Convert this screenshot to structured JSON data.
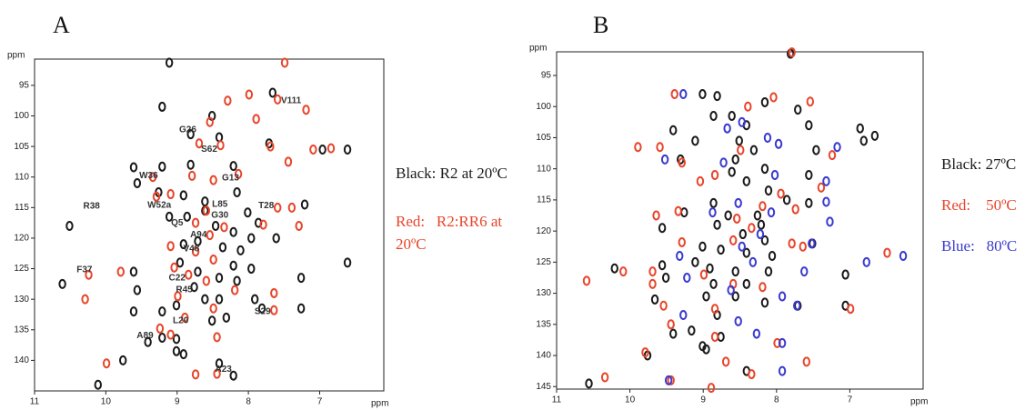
{
  "chart_data": [
    {
      "type": "scatter",
      "title": "A",
      "xlabel": "ppm",
      "ylabel": "ppm",
      "xlim": [
        11,
        6.1
      ],
      "ylim": [
        90.7,
        145
      ],
      "xticks": [
        11,
        10,
        9,
        8,
        7
      ],
      "yticks": [
        95,
        100,
        105,
        110,
        115,
        120,
        125,
        130,
        135,
        140
      ],
      "series": [
        {
          "name": "Black: R2 at 20ºC",
          "color": "#1a1a1a",
          "x": [
            9.1,
            7.65,
            9.2,
            8.5,
            8.8,
            8.4,
            7.7,
            8.8,
            9.2,
            8.2,
            9.6,
            9.55,
            9.25,
            8.9,
            8.6,
            8.15,
            7.2,
            8.6,
            8.0,
            7.85,
            8.45,
            8.85,
            9.1,
            8.2,
            7.95,
            7.6,
            8.7,
            8.9,
            8.35,
            8.1,
            8.95,
            8.2,
            7.95,
            9.6,
            8.7,
            8.4,
            8.15,
            7.25,
            9.55,
            8.75,
            8.6,
            8.4,
            9.0,
            9.2,
            9.6,
            7.9,
            7.8,
            7.25,
            8.3,
            8.5,
            9.0,
            9.2,
            9.4,
            9.0,
            8.9,
            9.75,
            8.4,
            8.2,
            10.1,
            6.6,
            6.6,
            6.95,
            10.6,
            10.5
          ],
          "values": [
            91.3,
            96.2,
            98.5,
            100,
            103,
            103.5,
            104.5,
            108,
            108.3,
            108.2,
            108.4,
            111,
            112.5,
            113,
            114,
            112.5,
            114.5,
            115.5,
            115.8,
            117.5,
            118,
            116.5,
            116.5,
            119,
            120,
            120,
            120.5,
            121,
            121.5,
            122,
            124,
            124.5,
            125,
            125.5,
            125.5,
            126.5,
            127,
            126.5,
            128.5,
            128,
            130,
            130,
            131,
            132,
            132,
            130,
            131.5,
            131.5,
            133,
            133.5,
            136.5,
            136.3,
            137,
            138.5,
            139,
            140,
            140.5,
            142.5,
            144,
            124,
            105.5,
            105.5,
            127.5,
            118
          ]
        },
        {
          "name": "Red:   R2:RR6 at 20ºC",
          "color": "#e8452a",
          "x": [
            7.5,
            8.0,
            7.6,
            8.3,
            8.55,
            7.2,
            7.9,
            8.4,
            8.7,
            7.7,
            7.1,
            6.85,
            7.45,
            8.8,
            9.35,
            8.5,
            8.15,
            9.1,
            9.3,
            8.6,
            7.6,
            8.75,
            8.35,
            7.8,
            8.55,
            9.1,
            8.75,
            8.5,
            9.05,
            8.85,
            8.6,
            8.2,
            7.65,
            9.0,
            8.5,
            7.65,
            8.9,
            9.25,
            9.1,
            8.45,
            10.0,
            8.75,
            8.45,
            9.8,
            10.25,
            10.3,
            7.4,
            7.3
          ],
          "values": [
            91.3,
            96.5,
            97.3,
            97.5,
            101,
            99,
            100.5,
            104.8,
            104.5,
            105,
            105.5,
            105.3,
            107.5,
            109.8,
            110,
            110.5,
            109.5,
            112.8,
            113.2,
            115.5,
            115,
            117.5,
            118.2,
            117.8,
            119.5,
            121.3,
            122.2,
            123.5,
            124.8,
            126,
            127,
            128.5,
            129,
            129.5,
            131.5,
            131.8,
            133,
            134.8,
            135.8,
            136.2,
            140.5,
            142.3,
            142.2,
            125.5,
            126,
            130,
            115,
            118
          ]
        }
      ],
      "annotations": [
        {
          "text": "V111",
          "x": 7.4,
          "y": 97.5
        },
        {
          "text": "G26",
          "x": 8.85,
          "y": 102.3
        },
        {
          "text": "S62",
          "x": 8.55,
          "y": 105.5
        },
        {
          "text": "W36",
          "x": 9.4,
          "y": 109.8
        },
        {
          "text": "G13",
          "x": 8.25,
          "y": 110.2
        },
        {
          "text": "W52a",
          "x": 9.25,
          "y": 114.6
        },
        {
          "text": "R38",
          "x": 10.2,
          "y": 114.8
        },
        {
          "text": "L85",
          "x": 8.4,
          "y": 114.5
        },
        {
          "text": "T28",
          "x": 7.75,
          "y": 114.7
        },
        {
          "text": "Q5",
          "x": 9.0,
          "y": 117.5
        },
        {
          "text": "G30",
          "x": 8.4,
          "y": 116.3
        },
        {
          "text": "A94",
          "x": 8.7,
          "y": 119.5
        },
        {
          "text": "V48",
          "x": 8.8,
          "y": 121.8
        },
        {
          "text": "F37",
          "x": 10.3,
          "y": 125.2
        },
        {
          "text": "C22",
          "x": 9.0,
          "y": 126.5
        },
        {
          "text": "R45",
          "x": 8.9,
          "y": 128.5
        },
        {
          "text": "S29",
          "x": 7.8,
          "y": 132
        },
        {
          "text": "L20",
          "x": 8.95,
          "y": 133.5
        },
        {
          "text": "A89",
          "x": 9.45,
          "y": 136
        },
        {
          "text": "A23",
          "x": 8.35,
          "y": 141.5
        }
      ]
    },
    {
      "type": "scatter",
      "title": "B",
      "xlabel": "ppm",
      "ylabel": "ppm",
      "xlim": [
        11,
        6.0
      ],
      "ylim": [
        91.2,
        145.4
      ],
      "xticks": [
        11,
        10,
        9,
        8,
        7
      ],
      "yticks": [
        95,
        100,
        105,
        110,
        115,
        120,
        125,
        130,
        135,
        140,
        145
      ],
      "series": [
        {
          "name": "Black: 27ºC",
          "color": "#1a1a1a",
          "x": [
            7.8,
            9.0,
            8.8,
            8.15,
            7.7,
            8.6,
            8.85,
            9.4,
            8.4,
            7.55,
            6.85,
            6.65,
            6.8,
            8.5,
            9.1,
            8.3,
            7.45,
            8.55,
            9.3,
            8.6,
            8.15,
            7.55,
            8.4,
            8.1,
            7.85,
            7.55,
            8.85,
            9.25,
            8.65,
            8.25,
            8.2,
            9.55,
            8.8,
            8.45,
            8.15,
            7.5,
            9.0,
            8.75,
            8.4,
            8.05,
            9.1,
            9.55,
            8.9,
            8.55,
            8.1,
            10.2,
            9.5,
            8.85,
            8.4,
            7.05,
            9.65,
            8.95,
            8.55,
            8.15,
            7.7,
            7.05,
            8.8,
            9.4,
            9.15,
            8.75,
            9.0,
            8.95,
            9.75,
            8.4,
            10.55
          ],
          "values": [
            91.5,
            98,
            98.3,
            99.3,
            100.5,
            101.5,
            101.5,
            103.8,
            103,
            103,
            103.5,
            104.7,
            105.5,
            105.5,
            105.5,
            107,
            107,
            108.5,
            108.5,
            110.5,
            110,
            111,
            112,
            113.5,
            115,
            115.5,
            115.5,
            117,
            117.5,
            117.5,
            119,
            119.5,
            119,
            120.5,
            121.5,
            122,
            122.5,
            123,
            123.5,
            124,
            125,
            125.5,
            126,
            126.5,
            126.5,
            126,
            127.5,
            128.5,
            128.5,
            127,
            131,
            130.5,
            130.5,
            131.5,
            132,
            132,
            133.5,
            136.5,
            136,
            137,
            138.5,
            139,
            140,
            142.5,
            144.5
          ]
        },
        {
          "name": "Red:    50ºC",
          "color": "#e8452a",
          "x": [
            7.8,
            9.4,
            8.05,
            7.55,
            8.4,
            9.9,
            9.6,
            9.3,
            8.5,
            7.25,
            8.85,
            9.05,
            7.4,
            7.95,
            8.2,
            7.75,
            9.65,
            9.35,
            8.55,
            8.35,
            9.3,
            8.6,
            7.8,
            7.65,
            6.5,
            10.1,
            9.7,
            9.0,
            8.6,
            8.2,
            10.6,
            9.7,
            9.55,
            8.85,
            7.0,
            9.45,
            8.85,
            8.0,
            9.8,
            9.45,
            10.35,
            8.9,
            8.35,
            7.6,
            8.7
          ],
          "values": [
            91.3,
            98,
            98.5,
            99.2,
            100,
            106.5,
            106.5,
            109,
            107,
            107.8,
            111,
            112,
            113,
            114,
            116,
            116.5,
            117.5,
            116.8,
            118,
            119.5,
            121.8,
            121.5,
            122,
            122.5,
            123.5,
            126.5,
            126.5,
            127,
            128.5,
            129,
            128,
            128.5,
            132,
            132.5,
            132.5,
            135,
            137,
            138,
            139.5,
            144,
            143.5,
            145.2,
            143,
            141,
            141
          ]
        },
        {
          "name": "Blue:   80ºC",
          "color": "#3a3ad0",
          "x": [
            9.3,
            8.5,
            8.7,
            8.15,
            7.2,
            8.0,
            9.55,
            8.75,
            8.05,
            7.35,
            8.55,
            7.35,
            8.9,
            8.1,
            7.3,
            8.25,
            7.55,
            8.5,
            9.35,
            8.35,
            7.65,
            9.25,
            8.65,
            7.95,
            7.75,
            9.3,
            8.55,
            8.3,
            7.95,
            6.8,
            6.3,
            7.95,
            9.5
          ],
          "values": [
            98,
            102.5,
            103.5,
            105,
            106.5,
            106,
            108.5,
            109,
            111,
            112,
            115.5,
            115.3,
            117,
            117,
            118.5,
            120.5,
            122,
            122.5,
            124,
            125,
            126.5,
            127.5,
            129.5,
            130.5,
            132,
            133.5,
            134.5,
            136.5,
            138,
            125,
            124,
            142.5,
            144
          ]
        }
      ]
    }
  ]
}
